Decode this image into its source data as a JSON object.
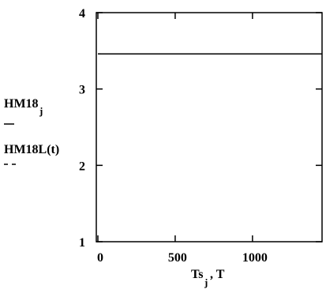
{
  "chart_data": {
    "type": "line",
    "x": [
      0,
      1450
    ],
    "series": [
      {
        "name": "HM18",
        "name_subscript": "j",
        "color": "#000000",
        "dash": "solid",
        "values": [
          3.46,
          3.46
        ]
      },
      {
        "name": "HM18L(t)",
        "color": "#000000",
        "dash": "dashed",
        "values": [
          3.46,
          3.46
        ]
      }
    ],
    "x_label": "Ts",
    "x_label_subscript": "j",
    "x_label_suffix": ", T",
    "xlim": [
      0,
      1450
    ],
    "xticks": [
      0,
      500,
      1000
    ],
    "ylim": [
      1,
      4
    ],
    "yticks": [
      1,
      2,
      3,
      4
    ],
    "grid": false
  }
}
